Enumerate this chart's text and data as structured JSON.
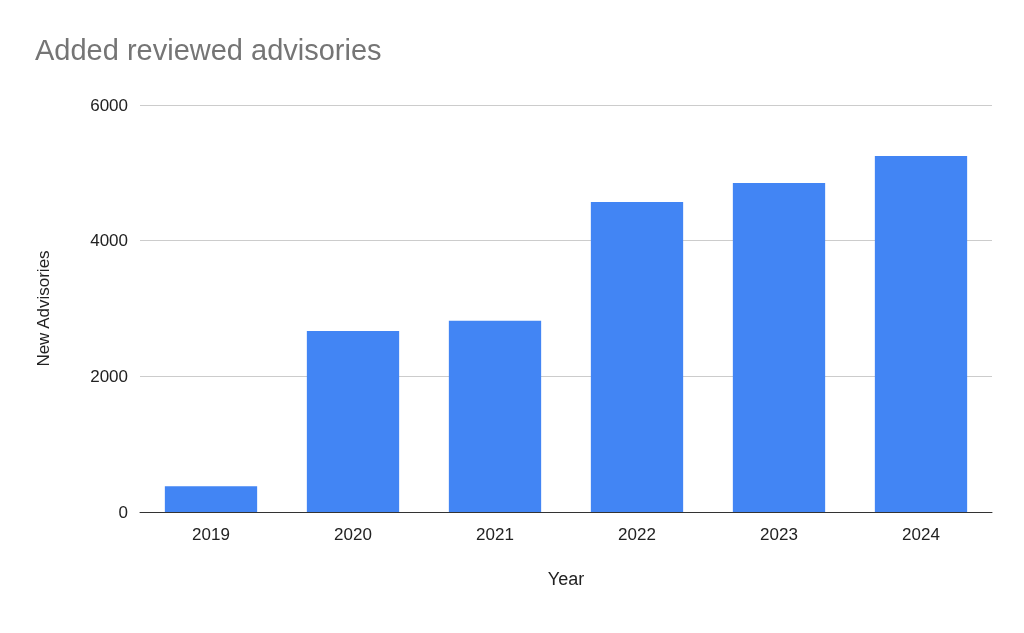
{
  "chart_data": {
    "type": "bar",
    "title": "Added reviewed advisories",
    "xlabel": "Year",
    "ylabel": "New Advisories",
    "categories": [
      "2019",
      "2020",
      "2021",
      "2022",
      "2023",
      "2024"
    ],
    "values": [
      380,
      2670,
      2820,
      4570,
      4850,
      5250
    ],
    "color": "#4285f4",
    "ylim": [
      0,
      6000
    ],
    "yticks": [
      0,
      2000,
      4000,
      6000
    ],
    "grid": "y"
  }
}
